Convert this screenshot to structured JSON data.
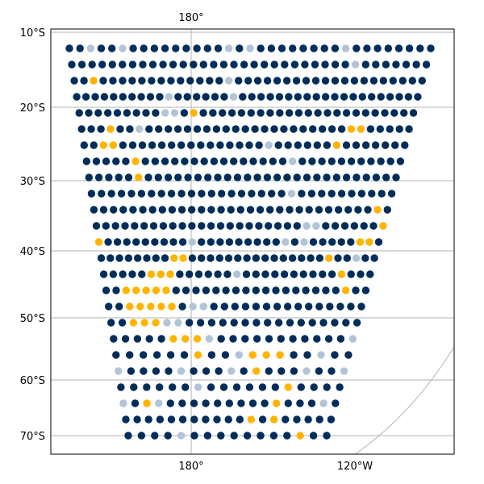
{
  "map": {
    "lat_labels": [
      "10°S",
      "20°S",
      "30°S",
      "40°S",
      "50°S",
      "60°S",
      "70°S"
    ],
    "lon_labels_top": [
      "180°"
    ],
    "lon_labels_bottom": [
      "180°",
      "120°W"
    ],
    "colors": {
      "dark": "#002d5a",
      "light": "#b4c4d8",
      "gold": "#ffb400",
      "grid": "#b3b3b3",
      "frame": "#000000"
    }
  },
  "chart_data": {
    "type": "scatter",
    "projection": "conic",
    "gridlines": true,
    "point_categories": [
      "dark",
      "light",
      "gold"
    ],
    "rows": [
      {
        "lat": 12.0,
        "colors": "ddlddldddddddddldlddddddddldddddddd"
      },
      {
        "lat": 14.5,
        "colors": "ddddddddddddddddddddddddddddlddddddd"
      },
      {
        "lat": 17.0,
        "colors": "ddgdddddddddddddldddddddddddddddddddd"
      },
      {
        "lat": 19.5,
        "colors": "ddddddddddlddddddldddddddddddddddddddd"
      },
      {
        "lat": 22.0,
        "colors": "dddddddddlldgddddddddddddddddddddddd"
      },
      {
        "lat": 24.5,
        "colors": "dddgddldddddddddddddddddddddggddddd"
      },
      {
        "lat": 27.0,
        "colors": "ddggdddddddddddddddlddddddgddddddd"
      },
      {
        "lat": 29.5,
        "colors": "dddddgdddddddddddddddlddddddddddd"
      },
      {
        "lat": 32.0,
        "colors": "dddddgdddddddddddddddddddddddddd"
      },
      {
        "lat": 34.5,
        "colors": "ddddddddddddddddddddldddddddddd"
      },
      {
        "lat": 37.0,
        "colors": "dddddddddddddddddddddddddddddgd"
      },
      {
        "lat": 39.5,
        "colors": "ddddddddddddddddddddddllddddddg"
      },
      {
        "lat": 42.0,
        "colors": "gdddddddddldddddddddldldddddggd"
      },
      {
        "lat": 44.5,
        "colors": "ddddddddggdddddddddddddddgddldd"
      },
      {
        "lat": 47.0,
        "colors": "dddddgggddddddlddddddddddgddd"
      },
      {
        "lat": 49.5,
        "colors": "ddgggggdddddddddddddddddgdd"
      },
      {
        "lat": 52.0,
        "colors": "ddgggggdllddddddddddddddd"
      },
      {
        "lat": 54.5,
        "colors": "ddggglldddddddddddddddd"
      },
      {
        "lat": 57.0,
        "colors": "dddddgggldddddddddddl"
      },
      {
        "lat": 59.5,
        "colors": "ddddddgddlgggddldd"
      },
      {
        "lat": 62.0,
        "colors": "lddddldddldgdddlddl"
      },
      {
        "lat": 64.5,
        "colors": "ddddddlddddddgdddd"
      },
      {
        "lat": 67.0,
        "colors": "ldgldddddddddgdddld"
      },
      {
        "lat": 69.5,
        "colors": "dddddddddddgdgddddd"
      },
      {
        "lat": 72.0,
        "colors": "ddddlddddddddgdd"
      }
    ]
  }
}
